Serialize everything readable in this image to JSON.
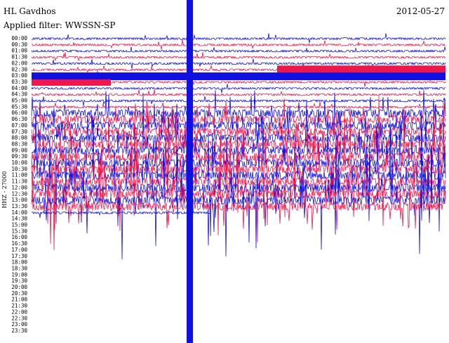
{
  "header": {
    "station": "HL Gavdhos",
    "date": "2012-05-27",
    "filter": "Applied filter: WWSSN-SP"
  },
  "channel_label": "HHZ - 27000",
  "rows": [
    "00:00",
    "00:30",
    "01:00",
    "01:30",
    "02:00",
    "02:30",
    "03:00",
    "03:30",
    "04:00",
    "04:30",
    "05:00",
    "05:30",
    "06:00",
    "06:30",
    "07:00",
    "07:30",
    "08:00",
    "08:30",
    "09:00",
    "09:30",
    "10:00",
    "10:30",
    "11:00",
    "11:30",
    "12:00",
    "12:30",
    "13:00",
    "13:30",
    "14:00",
    "14:30",
    "15:00",
    "15:30",
    "16:00",
    "16:30",
    "17:00",
    "17:30",
    "18:00",
    "18:30",
    "19:00",
    "19:30",
    "20:00",
    "20:30",
    "21:00",
    "21:30",
    "22:00",
    "22:30",
    "23:00",
    "23:30"
  ]
}
